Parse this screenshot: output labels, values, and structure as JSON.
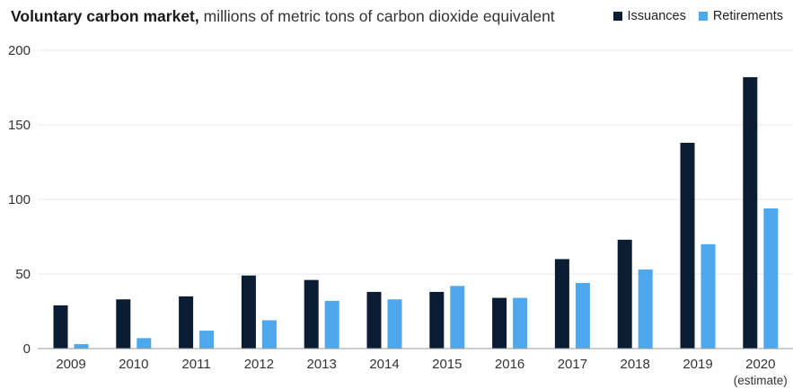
{
  "header": {
    "title_bold": "Voluntary carbon market,",
    "title_rest": "millions of metric tons of carbon dioxide equivalent"
  },
  "legend": [
    {
      "label": "Issuances",
      "color": "#0b1d33"
    },
    {
      "label": "Retirements",
      "color": "#4ea8ee"
    }
  ],
  "chart_data": {
    "type": "bar",
    "title": "Voluntary carbon market, millions of metric tons of carbon dioxide equivalent",
    "categories": [
      "2009",
      "2010",
      "2011",
      "2012",
      "2013",
      "2014",
      "2015",
      "2016",
      "2017",
      "2018",
      "2019",
      "2020"
    ],
    "category_sublabels": [
      "",
      "",
      "",
      "",
      "",
      "",
      "",
      "",
      "",
      "",
      "",
      "(estimate)"
    ],
    "series": [
      {
        "name": "Issuances",
        "color": "#0b1d33",
        "values": [
          29,
          33,
          35,
          49,
          46,
          38,
          38,
          34,
          60,
          73,
          138,
          182
        ]
      },
      {
        "name": "Retirements",
        "color": "#4ea8ee",
        "values": [
          3,
          7,
          12,
          19,
          32,
          33,
          42,
          34,
          44,
          53,
          70,
          94
        ]
      }
    ],
    "ylim": [
      0,
      200
    ],
    "yticks": [
      0,
      50,
      100,
      150,
      200
    ],
    "grid": true,
    "legend_position": "top-right"
  }
}
